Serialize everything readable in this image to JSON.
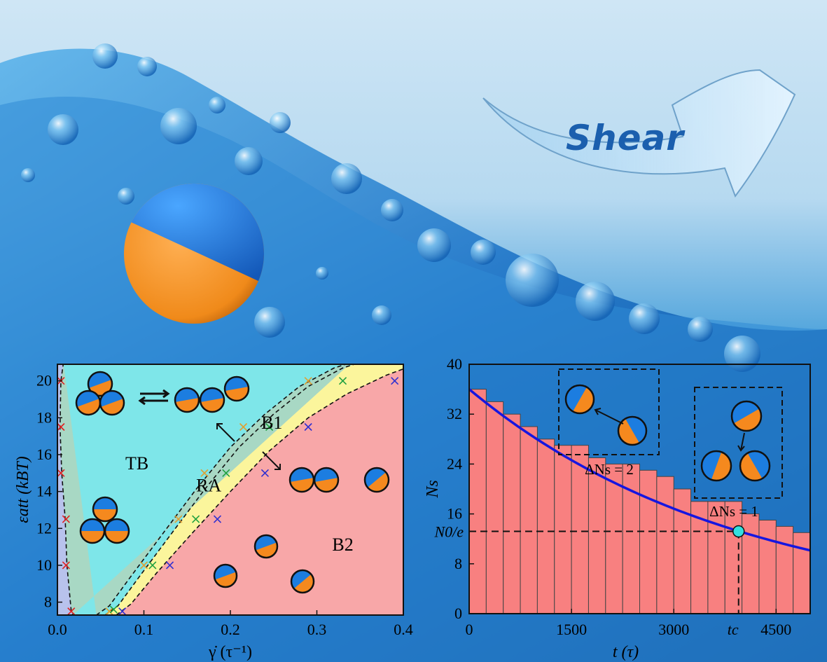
{
  "shear_label": "Shear",
  "colors": {
    "orange": "#f5891e",
    "blue": "#1c7de0",
    "tb": "#a8d8c4",
    "ra": "#7ee6e9",
    "b1": "#fbf59c",
    "b2": "#f8a7a8",
    "bar": "#f88080",
    "curve": "#1616e0"
  },
  "chart_data": [
    {
      "type": "scatter",
      "xlabel": "γ̇ (τ⁻¹)",
      "ylabel": "εatt (kBT)",
      "xlim": [
        0.0,
        0.4
      ],
      "ylim": [
        7.3,
        20.9
      ],
      "xticks": [
        0.0,
        0.1,
        0.2,
        0.3,
        0.4
      ],
      "xtick_labels": [
        "0.0",
        "0.1",
        "0.2",
        "0.3",
        "0.4"
      ],
      "yticks": [
        8,
        10,
        12,
        14,
        16,
        18,
        20
      ],
      "ytick_labels": [
        "8",
        "10",
        "12",
        "14",
        "16",
        "18",
        "20"
      ],
      "regions": [
        {
          "name": "TB",
          "label_pos": [
            0.092,
            15.2
          ]
        },
        {
          "name": "RA",
          "label_pos": [
            0.175,
            14.0
          ]
        },
        {
          "name": "B1",
          "label_pos": [
            0.248,
            17.4
          ]
        },
        {
          "name": "B2",
          "label_pos": [
            0.33,
            10.8
          ]
        }
      ],
      "boundaries": [
        {
          "name": "left",
          "points": [
            [
              0.007,
              21
            ],
            [
              0.004,
              20
            ],
            [
              0.003,
              17.5
            ],
            [
              0.005,
              15
            ],
            [
              0.009,
              12.5
            ],
            [
              0.011,
              10
            ],
            [
              0.016,
              7.5
            ],
            [
              0.018,
              7.3
            ]
          ]
        },
        {
          "name": "TB-RA",
          "points": [
            [
              0.045,
              7.3
            ],
            [
              0.06,
              7.8
            ],
            [
              0.085,
              9.4
            ],
            [
              0.12,
              11.6
            ],
            [
              0.16,
              14.1
            ],
            [
              0.2,
              16.4
            ],
            [
              0.24,
              18.2
            ],
            [
              0.28,
              19.7
            ],
            [
              0.32,
              20.7
            ],
            [
              0.34,
              21
            ]
          ]
        },
        {
          "name": "RA-B1",
          "points": [
            [
              0.055,
              7.3
            ],
            [
              0.07,
              7.8
            ],
            [
              0.095,
              9.4
            ],
            [
              0.13,
              11.6
            ],
            [
              0.17,
              14.1
            ],
            [
              0.21,
              16.4
            ],
            [
              0.25,
              18.2
            ],
            [
              0.29,
              19.7
            ],
            [
              0.33,
              20.7
            ],
            [
              0.35,
              21
            ]
          ]
        },
        {
          "name": "B1-B2",
          "points": [
            [
              0.068,
              7.3
            ],
            [
              0.085,
              7.9
            ],
            [
              0.115,
              9.6
            ],
            [
              0.155,
              11.7
            ],
            [
              0.2,
              14.0
            ],
            [
              0.245,
              16.2
            ],
            [
              0.29,
              18.0
            ],
            [
              0.335,
              19.3
            ],
            [
              0.38,
              20.3
            ],
            [
              0.42,
              21
            ]
          ]
        }
      ],
      "series": [
        {
          "color": "#e02020",
          "points": [
            [
              0.004,
              20
            ],
            [
              0.004,
              17.5
            ],
            [
              0.004,
              15
            ],
            [
              0.01,
              12.5
            ],
            [
              0.01,
              10
            ],
            [
              0.016,
              7.5
            ]
          ]
        },
        {
          "color": "#e0a030",
          "points": [
            [
              0.06,
              7.5
            ],
            [
              0.1,
              10
            ],
            [
              0.14,
              12.5
            ],
            [
              0.17,
              15
            ],
            [
              0.215,
              17.5
            ],
            [
              0.29,
              20
            ]
          ]
        },
        {
          "color": "#20a040",
          "points": [
            [
              0.065,
              7.6
            ],
            [
              0.11,
              10
            ],
            [
              0.16,
              12.5
            ],
            [
              0.195,
              15
            ],
            [
              0.245,
              17.5
            ],
            [
              0.33,
              20
            ]
          ]
        },
        {
          "color": "#3030d0",
          "points": [
            [
              0.075,
              7.5
            ],
            [
              0.13,
              10
            ],
            [
              0.185,
              12.5
            ],
            [
              0.24,
              15
            ],
            [
              0.29,
              17.5
            ],
            [
              0.39,
              20
            ]
          ]
        }
      ]
    },
    {
      "type": "bar",
      "xlabel": "t (τ)",
      "ylabel": "Ns",
      "xlim": [
        0,
        5000
      ],
      "ylim": [
        0,
        40
      ],
      "xticks": [
        0,
        1500,
        3000,
        4500
      ],
      "xtick_labels": [
        "0",
        "1500",
        "3000",
        "4500"
      ],
      "extra_xtick": {
        "value": 3950,
        "label": "tc"
      },
      "yticks": [
        0,
        8,
        16,
        24,
        32,
        40
      ],
      "ytick_labels": [
        "0",
        "8",
        "16",
        "24",
        "32",
        "40"
      ],
      "extra_ytick": {
        "value": 13.2,
        "label": "N0/e"
      },
      "bin_width": 250,
      "values": [
        36,
        34,
        32,
        30,
        28,
        27,
        27,
        25,
        24,
        24,
        23,
        22,
        20,
        18,
        18,
        18,
        16,
        15,
        14,
        13
      ],
      "fit": {
        "N0": 36,
        "tau": 3950,
        "offset": 0
      },
      "marker": {
        "x": 3950,
        "y": 13.2
      },
      "annotations": [
        {
          "text": "ΔNs = 2"
        },
        {
          "text": "ΔNs = 1"
        }
      ]
    }
  ]
}
